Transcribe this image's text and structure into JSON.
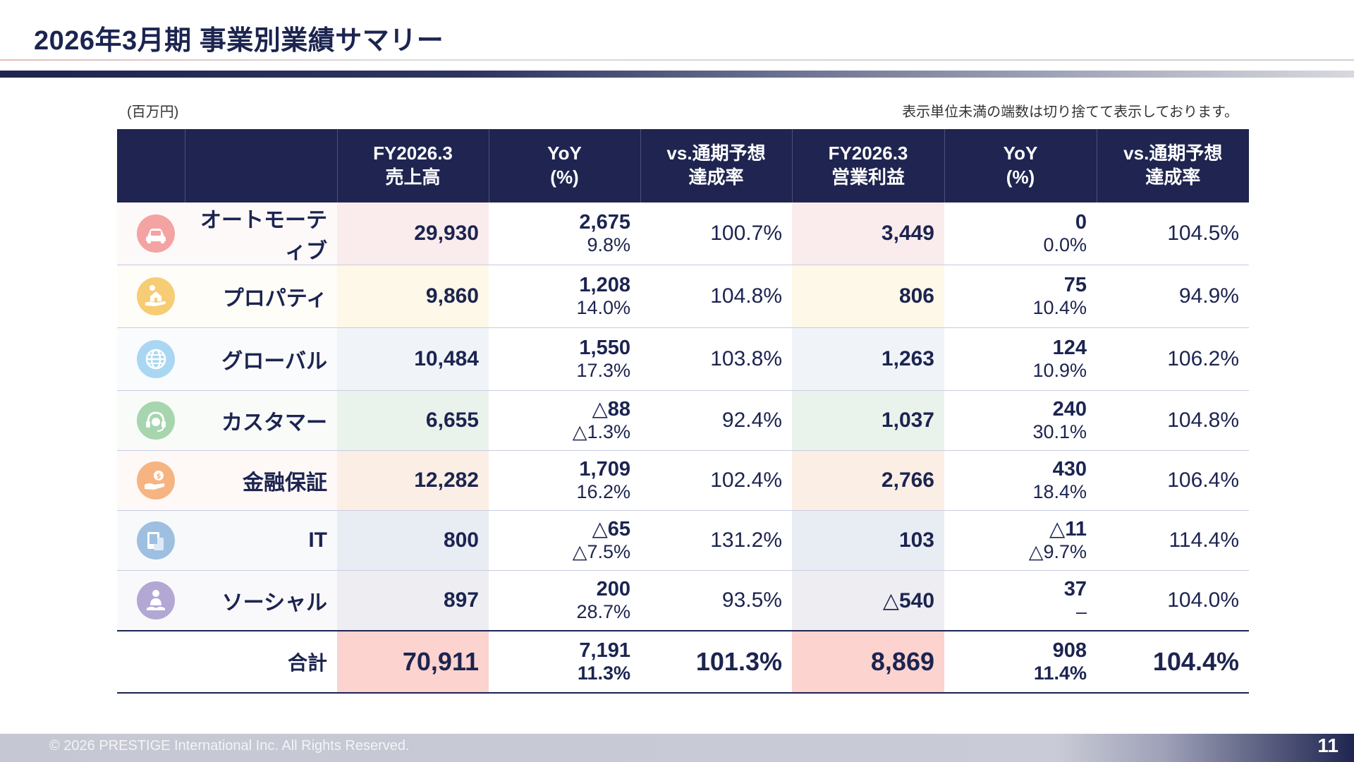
{
  "title": "2026年3月期 事業別業績サマリー",
  "unit_label": "(百万円)",
  "note": "表示単位未満の端数は切り捨てて表示しております。",
  "headers": [
    {
      "l1": "FY2026.3",
      "l2": "売上高"
    },
    {
      "l1": "YoY",
      "l2": "(%)"
    },
    {
      "l1": "vs.通期予想",
      "l2": "達成率"
    },
    {
      "l1": "FY2026.3",
      "l2": "営業利益"
    },
    {
      "l1": "YoY",
      "l2": "(%)"
    },
    {
      "l1": "vs.通期予想",
      "l2": "達成率"
    }
  ],
  "rows": [
    {
      "icon": "car-icon",
      "icon_color": "#f4a3a3",
      "tint": "#faecec",
      "name": "オートモーティブ",
      "sales": "29,930",
      "sales_yoy": "2,675",
      "sales_yoy_pct": "9.8%",
      "sales_ach": "100.7%",
      "op": "3,449",
      "op_yoy": "0",
      "op_yoy_pct": "0.0%",
      "op_ach": "104.5%"
    },
    {
      "icon": "house-hand-icon",
      "icon_color": "#f6cd74",
      "tint": "#fdf8e8",
      "name": "プロパティ",
      "sales": "9,860",
      "sales_yoy": "1,208",
      "sales_yoy_pct": "14.0%",
      "sales_ach": "104.8%",
      "op": "806",
      "op_yoy": "75",
      "op_yoy_pct": "10.4%",
      "op_ach": "94.9%"
    },
    {
      "icon": "globe-icon",
      "icon_color": "#a9d7f2",
      "tint": "#f0f4f9",
      "name": "グローバル",
      "sales": "10,484",
      "sales_yoy": "1,550",
      "sales_yoy_pct": "17.3%",
      "sales_ach": "103.8%",
      "op": "1,263",
      "op_yoy": "124",
      "op_yoy_pct": "10.9%",
      "op_ach": "106.2%"
    },
    {
      "icon": "headset-icon",
      "icon_color": "#a6d5ae",
      "tint": "#eaf3eb",
      "name": "カスタマー",
      "sales": "6,655",
      "sales_yoy": "△88",
      "sales_yoy_pct": "△1.3%",
      "sales_ach": "92.4%",
      "op": "1,037",
      "op_yoy": "240",
      "op_yoy_pct": "30.1%",
      "op_ach": "104.8%"
    },
    {
      "icon": "coin-hand-icon",
      "icon_color": "#f6b482",
      "tint": "#fbeee4",
      "name": "金融保証",
      "sales": "12,282",
      "sales_yoy": "1,709",
      "sales_yoy_pct": "16.2%",
      "sales_ach": "102.4%",
      "op": "2,766",
      "op_yoy": "430",
      "op_yoy_pct": "18.4%",
      "op_ach": "106.4%"
    },
    {
      "icon": "devices-icon",
      "icon_color": "#9ebfe0",
      "tint": "#e8ecf3",
      "name": "IT",
      "sales": "800",
      "sales_yoy": "△65",
      "sales_yoy_pct": "△7.5%",
      "sales_ach": "131.2%",
      "op": "103",
      "op_yoy": "△11",
      "op_yoy_pct": "△9.7%",
      "op_ach": "114.4%"
    },
    {
      "icon": "people-icon",
      "icon_color": "#b3a8d4",
      "tint": "#eeedf2",
      "name": "ソーシャル",
      "sales": "897",
      "sales_yoy": "200",
      "sales_yoy_pct": "28.7%",
      "sales_ach": "93.5%",
      "op": "△540",
      "op_yoy": "37",
      "op_yoy_pct": "–",
      "op_ach": "104.0%"
    }
  ],
  "total": {
    "label": "合計",
    "tint": "#fcd3cf",
    "sales": "70,911",
    "sales_yoy": "7,191",
    "sales_yoy_pct": "11.3%",
    "sales_ach": "101.3%",
    "op": "8,869",
    "op_yoy": "908",
    "op_yoy_pct": "11.4%",
    "op_ach": "104.4%"
  },
  "footer": {
    "copyright": "© 2026 PRESTIGE International Inc. All Rights Reserved.",
    "page": "11"
  },
  "colors": {
    "navy": "#1f2550",
    "text": "#1c2450"
  }
}
